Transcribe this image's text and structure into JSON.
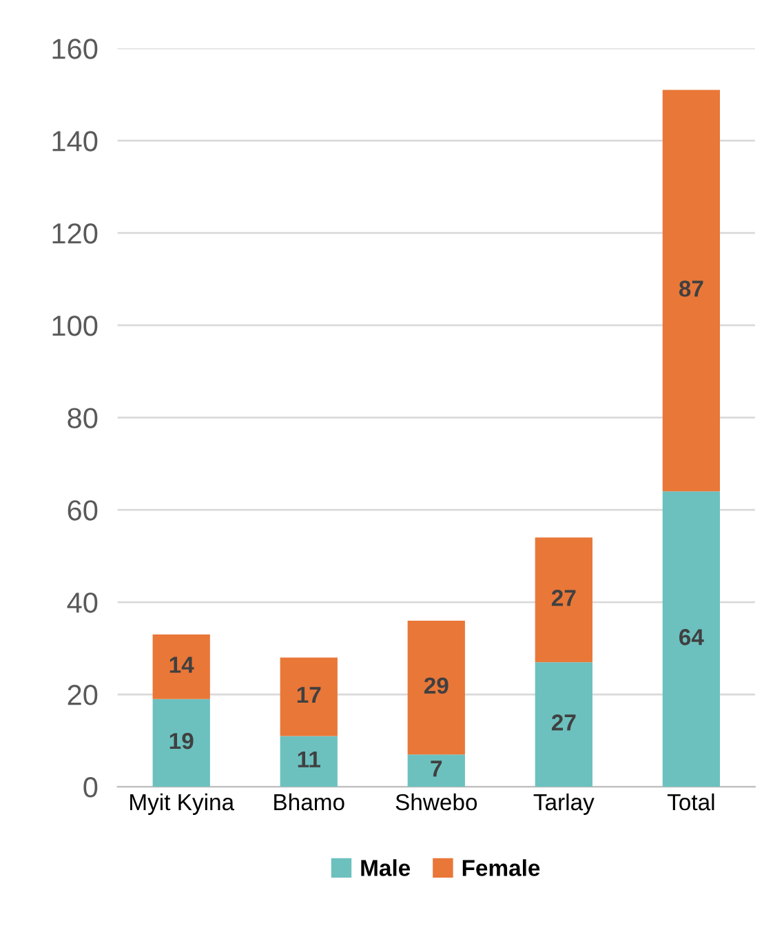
{
  "chart_data": {
    "type": "bar",
    "stacked": true,
    "categories": [
      "Myit Kyina",
      "Bhamo",
      "Shwebo",
      "Tarlay",
      "Total"
    ],
    "series": [
      {
        "name": "Male",
        "color": "#6cc1bf",
        "values": [
          19,
          11,
          7,
          27,
          64
        ]
      },
      {
        "name": "Female",
        "color": "#e97738",
        "values": [
          14,
          17,
          29,
          27,
          87
        ]
      }
    ],
    "ylim": [
      0,
      160
    ],
    "yticks": [
      0,
      20,
      40,
      60,
      80,
      100,
      120,
      140,
      160
    ],
    "grid": "y",
    "legend": "bottom",
    "data_labels": true
  }
}
